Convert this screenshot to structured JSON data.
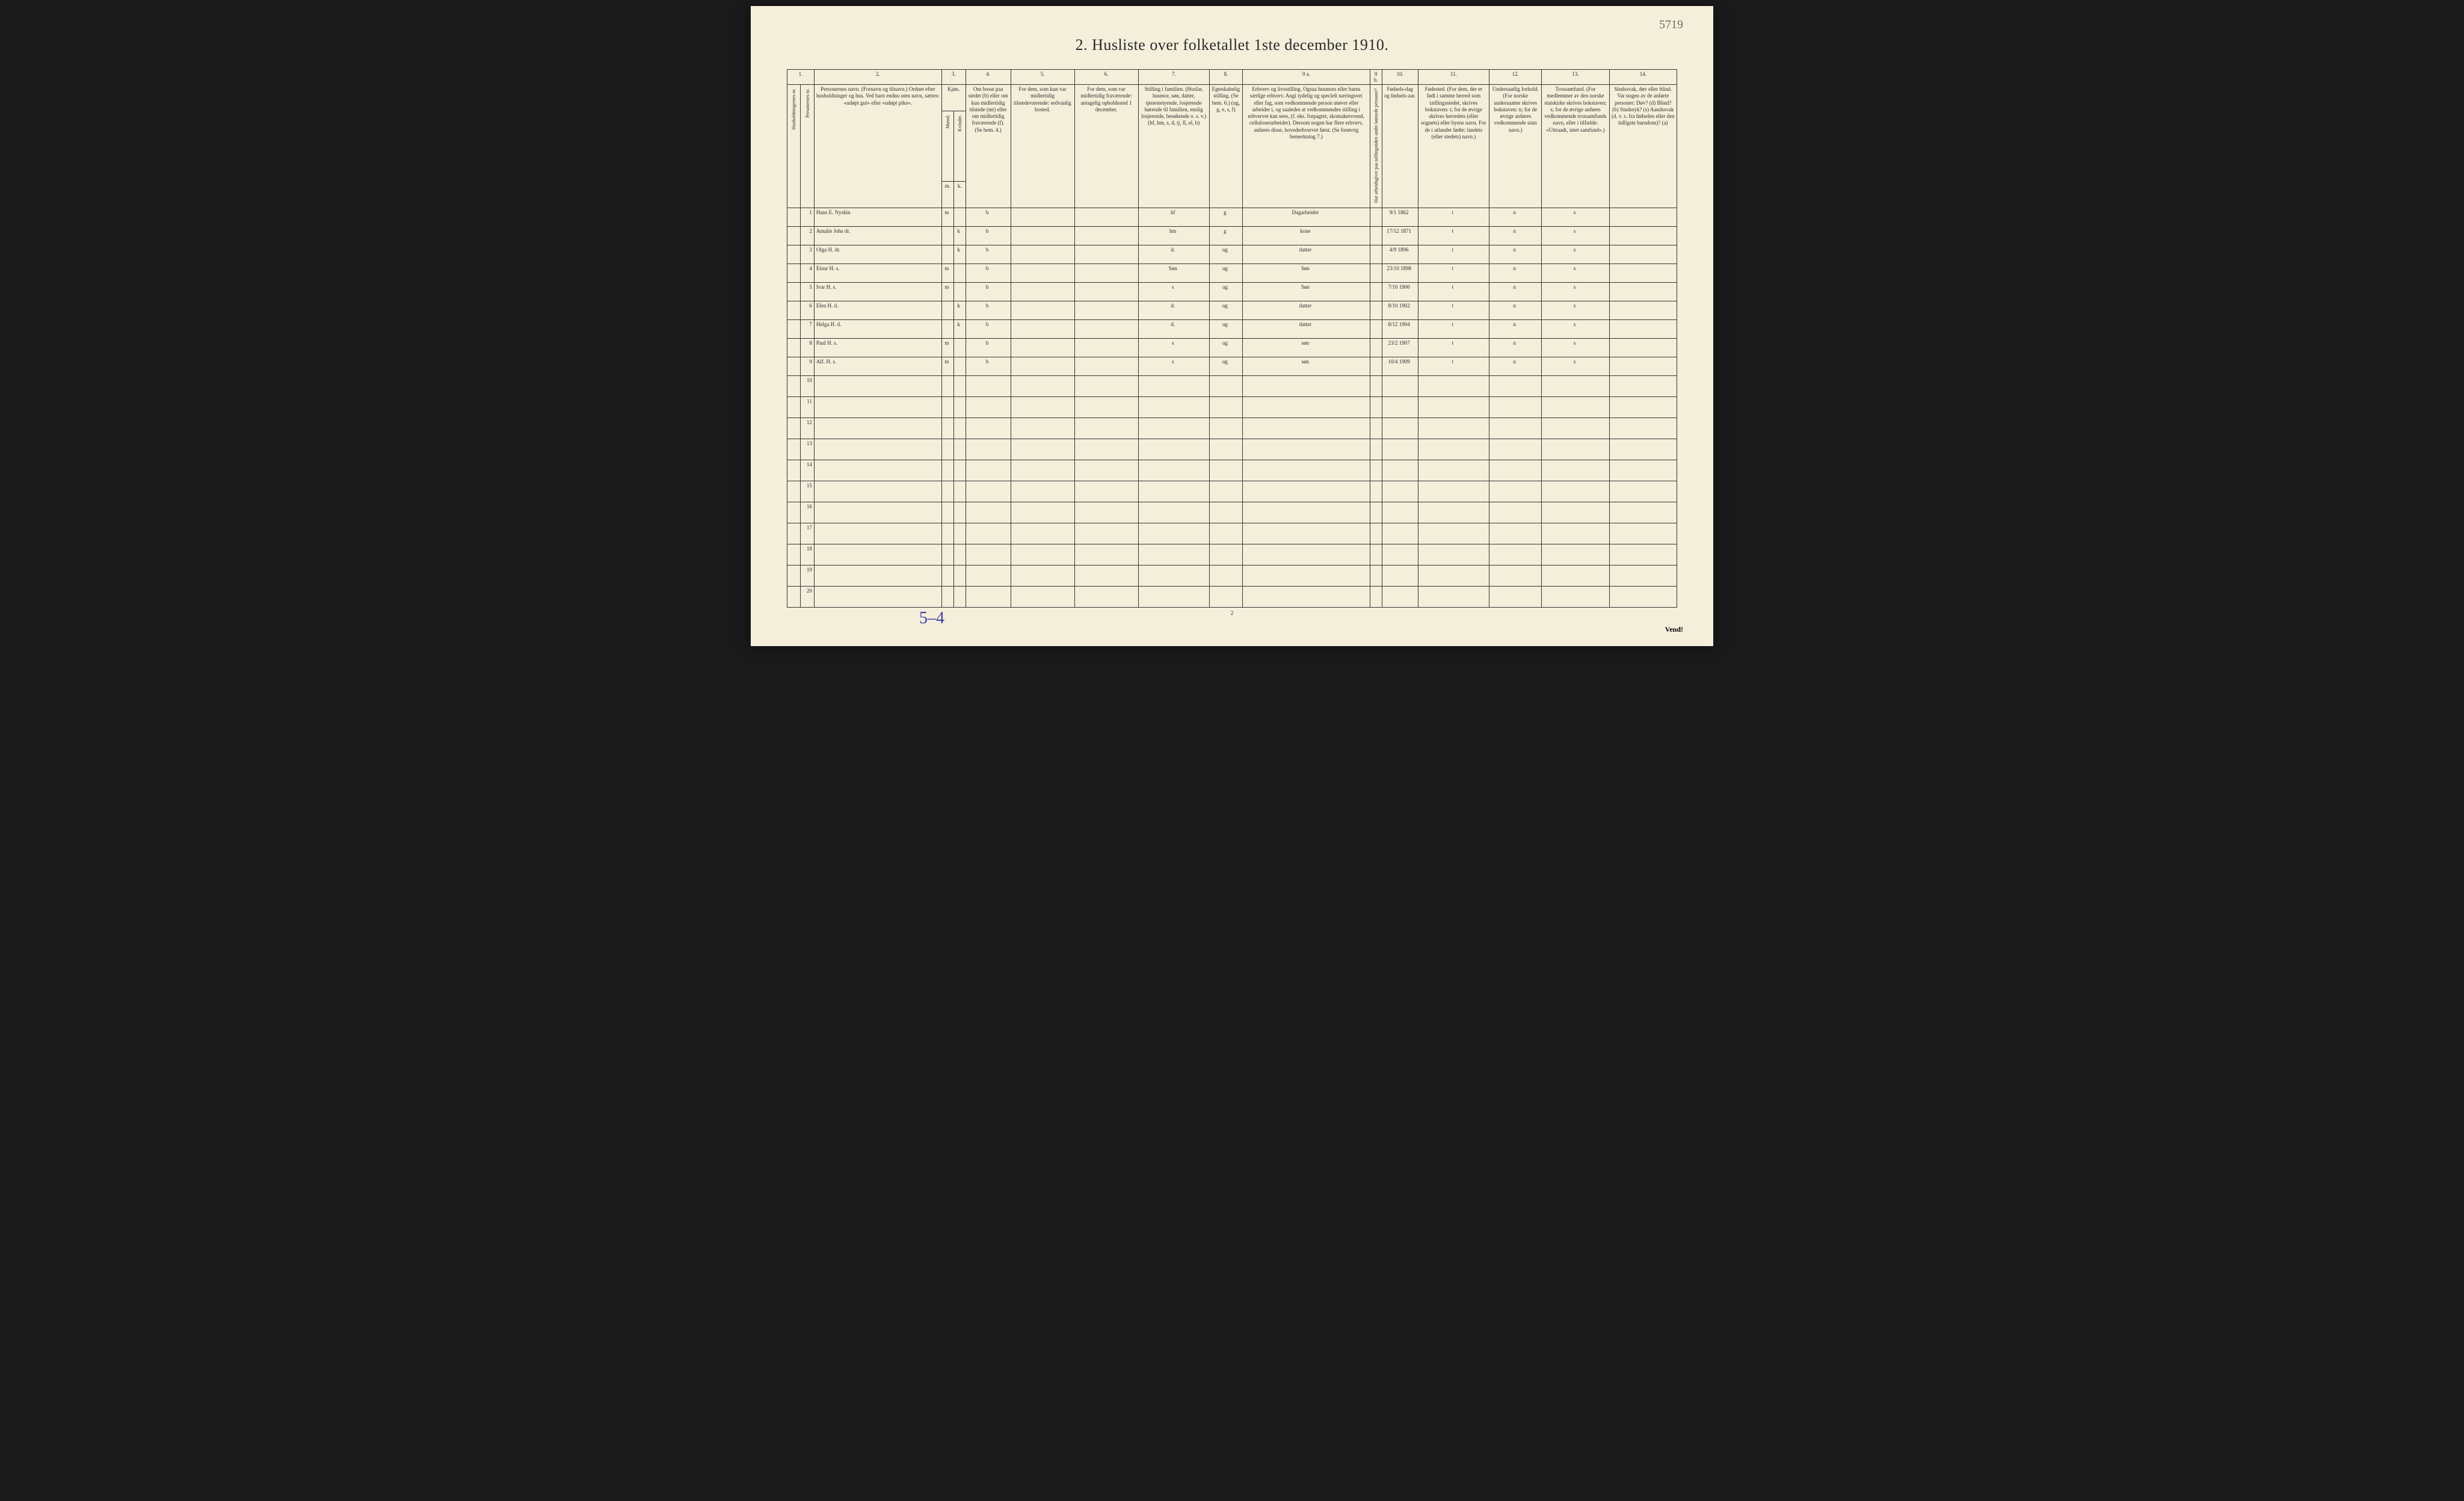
{
  "title": "2.  Husliste over folketallet 1ste december 1910.",
  "topRightMark": "5719",
  "bottomLeftMark": "5–4",
  "bottomPageNum": "2",
  "vend": "Vend!",
  "columns": {
    "nums": [
      "1.",
      "2.",
      "3.",
      "4.",
      "5.",
      "6.",
      "7.",
      "8.",
      "9 a.",
      "9 b.",
      "10.",
      "11.",
      "12.",
      "13.",
      "14."
    ],
    "h1_vert": "Husholdningernes nr.",
    "h1b_vert": "Personernes nr.",
    "h2": "Personernes navn.\n(Fornavn og tilnavn.)\nOrdnet efter husholdninger og hus.\nVed barn endnu uten navn, sættes: «udøpt gut» eller «udøpt pike».",
    "h3": "Kjøn.",
    "h3_sub": [
      "Mænd.",
      "Kvinder."
    ],
    "h3_foot": [
      "m.",
      "k."
    ],
    "h4": "Om bosat paa stedet (b) eller om kun midlertidig tilstede (mt) eller om midlertidig fraværende (f).\n(Se bem. 4.)",
    "h5": "For dem, som kun var midlertidig tilstedeværende:\nsedvanlig bosted.",
    "h6": "For dem, som var midlertidig fraværende:\nantagelig opholdssted 1 december.",
    "h7": "Stilling i familien.\n(Husfar, husmor, søn, datter, tjenestetyende, losjerende hørende til familien, enslig losjerende, besøkende o. s. v.)\n(hf, hm, s, d, tj, fl, el, b)",
    "h8": "Egteskabelig stilling.\n(Se bem. 6.)\n(ug, g, e, s, f)",
    "h9a": "Erhverv og livsstilling.\nOgsaa husmors eller barns særlige erhverv. Angi tydelig og specielt næringsvei eller fag, som vedkommende person utøver eller arbeider i, og saaledes at vedkommendes stilling i erhvervet kan sees, (f. eks. forpagter, skomakersvend, celluloserarbeider). Dersom nogen har flere erhverv, anføres disse, hovederhvervet først.\n(Se forøvrig bemerkning 7.)",
    "h9b_vert": "Har arbeidsgiver paa tællingstiden andre lønnede personer?",
    "h10": "Fødsels-dag og fødsels-aar.",
    "h11": "Fødested.\n(For dem, der er født i samme herred som tællingsstedet, skrives bokstaven: t; for de øvrige skrives herredets (eller sognets) eller byens navn. For de i utlandet fødte: landets (eller stedets) navn.)",
    "h12": "Undersaatlig forhold.\n(For norske undersaatter skrives bokstaven: n; for de øvrige anføres vedkommende stats navn.)",
    "h13": "Trossamfund.\n(For medlemmer av den norske statskirke skrives bokstaven: s; for de øvrige anføres vedkommende trossamfunds navn, eller i tilfælde: «Uttraadt, intet samfund».)",
    "h14": "Sindssvak, døv eller blind.\nVar nogen av de anførte personer:\nDøv? (d)\nBlind? (b)\nSindssyk? (s)\nAandssvak (d. v. s. fra fødselen eller den tidligste barndom)? (a)"
  },
  "rows": [
    {
      "n": "1",
      "name": "Hans E. Nyskin",
      "mk": "m",
      "res": "b",
      "fam": "hf",
      "marital": "g",
      "occ": "Dagarbeider",
      "bday": "9/1",
      "byear": "1862",
      "bplace": "t",
      "nat": "n",
      "rel": "s"
    },
    {
      "n": "2",
      "name": "Amalie Johs dr.",
      "mk": "k",
      "res": "b",
      "fam": "hm",
      "marital": "g",
      "occ": "kone",
      "bday": "17/12",
      "byear": "1871",
      "bplace": "t",
      "nat": "n",
      "rel": "s"
    },
    {
      "n": "3",
      "name": "Olga H. dr.",
      "mk": "k",
      "res": "b",
      "fam": "d.",
      "marital": "ug",
      "occ": "datter",
      "bday": "4/9",
      "byear": "1896",
      "bplace": "t",
      "nat": "n",
      "rel": "s"
    },
    {
      "n": "4",
      "name": "Einar H. s.",
      "mk": "m",
      "res": "b",
      "fam": "Søn",
      "marital": "ug",
      "occ": "Søn",
      "bday": "23/10",
      "byear": "1898",
      "bplace": "t",
      "nat": "n",
      "rel": "s"
    },
    {
      "n": "5",
      "name": "Ivar H. s.",
      "mk": "m",
      "res": "b",
      "fam": "s",
      "marital": "ug",
      "occ": "Søn",
      "bday": "7/10",
      "byear": "1900",
      "bplace": "t",
      "nat": "n",
      "rel": "s"
    },
    {
      "n": "6",
      "name": "Elen H. d.",
      "mk": "k",
      "res": "b",
      "fam": "d.",
      "marital": "ug",
      "occ": "datter",
      "bday": "8/10",
      "byear": "1902",
      "bplace": "t",
      "nat": "n",
      "rel": "s"
    },
    {
      "n": "7",
      "name": "Helga H. d.",
      "mk": "k",
      "res": "b",
      "fam": "d.",
      "marital": "ug",
      "occ": "datter",
      "bday": "8/12",
      "byear": "1904",
      "bplace": "t",
      "nat": "n",
      "rel": "s"
    },
    {
      "n": "8",
      "name": "Paul H. s.",
      "mk": "m",
      "res": "b",
      "fam": "s",
      "marital": "ug",
      "occ": "søn",
      "bday": "23/2",
      "byear": "1907",
      "bplace": "t",
      "nat": "n",
      "rel": "s"
    },
    {
      "n": "9",
      "name": "Alf. H. s.",
      "mk": "m",
      "res": "b",
      "fam": "s",
      "marital": "ug",
      "occ": "søn",
      "bday": "10/4",
      "byear": "1909",
      "bplace": "t",
      "nat": "n",
      "rel": "s"
    }
  ],
  "emptyRows": [
    "10",
    "11",
    "12",
    "13",
    "14",
    "15",
    "16",
    "17",
    "18",
    "19",
    "20"
  ],
  "colors": {
    "paper": "#f4efdb",
    "ink": "#2a2a2a",
    "handInk": "#2b2b2b",
    "purpleInk": "#4040a0",
    "border": "#333333",
    "pageBg": "#1a1a1a"
  },
  "layout": {
    "pageWidthPx": 1480,
    "fonts": {
      "title_pt": 26,
      "header_pt": 8,
      "hand_pt": 15,
      "rownum_pt": 10
    }
  }
}
